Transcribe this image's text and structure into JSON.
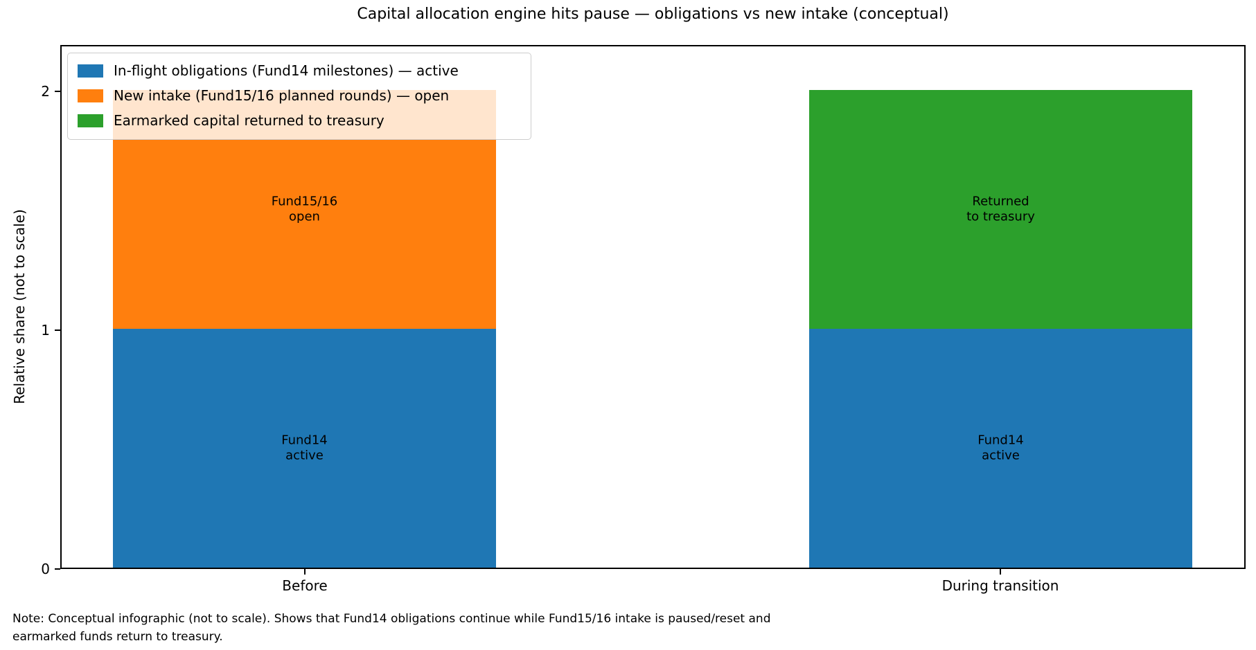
{
  "title": "Capital allocation engine hits pause — obligations vs new intake (conceptual)",
  "axes": {
    "ylabel": "Relative share (not to scale)",
    "yticks": [
      "0",
      "1",
      "2"
    ]
  },
  "note": "Note: Conceptual infographic (not to scale). Shows that Fund14 obligations continue while Fund15/16 intake is paused/reset and\nearmarked funds return to treasury.",
  "chart_data": {
    "type": "bar",
    "stacked": true,
    "title": "Capital allocation engine hits pause — obligations vs new intake (conceptual)",
    "ylabel": "Relative share (not to scale)",
    "categories": [
      "Before",
      "During transition"
    ],
    "ylim": [
      0,
      2.2
    ],
    "yticks": [
      0,
      1,
      2
    ],
    "grid": false,
    "legend_position": "upper left",
    "background": "#ffffff",
    "series": [
      {
        "name": "In-flight obligations (Fund14 milestones) — active",
        "color": "#1f77b4",
        "values": [
          1,
          1
        ],
        "segment_labels": [
          "Fund14\nactive",
          "Fund14\nactive"
        ]
      },
      {
        "name": "New intake (Fund15/16 planned rounds) — open",
        "color": "#ff7f0e",
        "values": [
          1,
          0
        ],
        "segment_labels": [
          "Fund15/16\nopen",
          ""
        ]
      },
      {
        "name": "Earmarked capital returned to treasury",
        "color": "#2ca02c",
        "values": [
          0,
          1
        ],
        "segment_labels": [
          "",
          "Returned\nto treasury"
        ]
      }
    ]
  }
}
